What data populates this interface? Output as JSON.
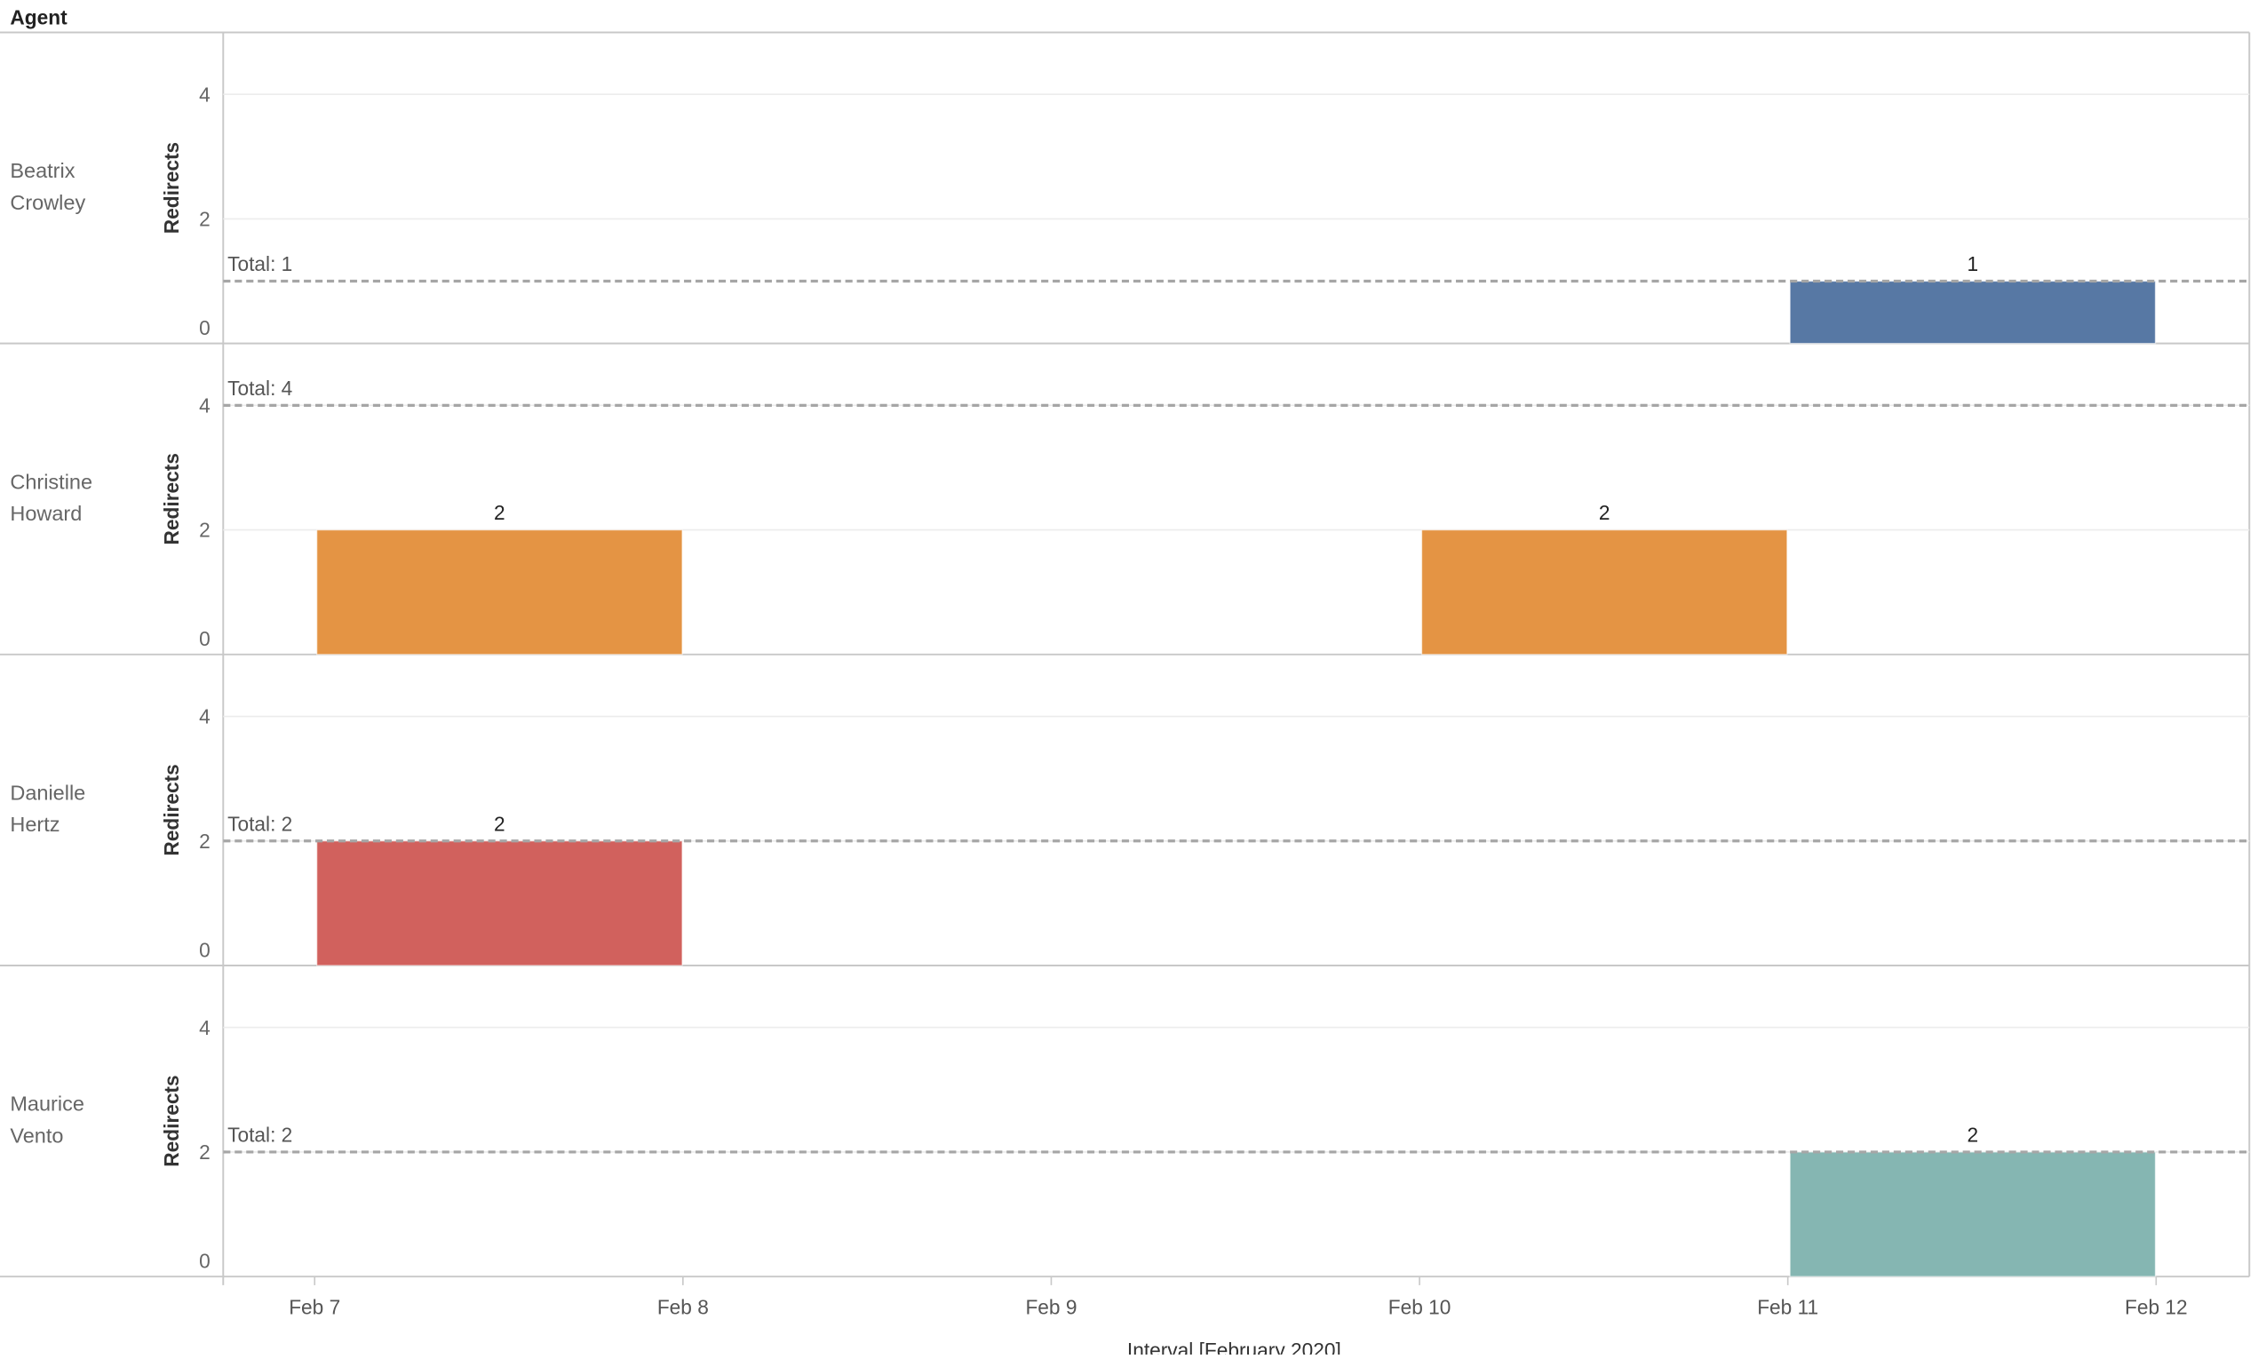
{
  "chart_data": {
    "type": "bar",
    "row_header": "Agent",
    "xlabel": "Interval [February 2020]",
    "ylabel": "Redirects",
    "ylim": [
      0,
      5
    ],
    "y_ticks": [
      0,
      2,
      4
    ],
    "x_ticks": [
      "Feb 7",
      "Feb 8",
      "Feb 9",
      "Feb 10",
      "Feb 11",
      "Feb 12"
    ],
    "grid": "horizontal",
    "panels": [
      {
        "agent": "Beatrix Crowley",
        "agent_lines": [
          "Beatrix",
          "Crowley"
        ],
        "color": "#5778a4",
        "total": 1,
        "total_label": "Total: 1",
        "bars": [
          {
            "start": "Feb 11",
            "end": "Feb 12",
            "value": 1,
            "label": "1"
          }
        ]
      },
      {
        "agent": "Christine Howard",
        "agent_lines": [
          "Christine",
          "Howard"
        ],
        "color": "#e49444",
        "total": 4,
        "total_label": "Total: 4",
        "bars": [
          {
            "start": "Feb 7",
            "end": "Feb 8",
            "value": 2,
            "label": "2"
          },
          {
            "start": "Feb 10",
            "end": "Feb 11",
            "value": 2,
            "label": "2"
          }
        ]
      },
      {
        "agent": "Danielle Hertz",
        "agent_lines": [
          "Danielle",
          "Hertz"
        ],
        "color": "#d1615d",
        "total": 2,
        "total_label": "Total: 2",
        "bars": [
          {
            "start": "Feb 7",
            "end": "Feb 8",
            "value": 2,
            "label": "2"
          }
        ]
      },
      {
        "agent": "Maurice Vento",
        "agent_lines": [
          "Maurice",
          "Vento"
        ],
        "color": "#85b6b2",
        "total": 2,
        "total_label": "Total: 2",
        "bars": [
          {
            "start": "Feb 11",
            "end": "Feb 12",
            "value": 2,
            "label": "2"
          }
        ]
      }
    ]
  }
}
